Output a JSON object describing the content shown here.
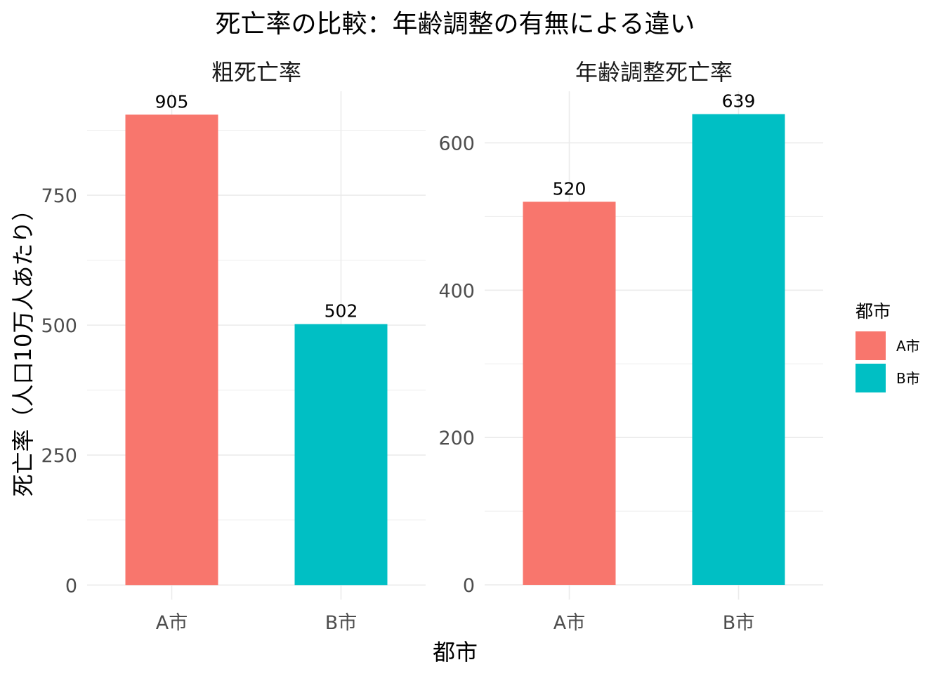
{
  "chart_data": {
    "type": "bar",
    "title": "死亡率の比較：年齢調整の有無による違い",
    "xlabel": "都市",
    "ylabel": "死亡率（人口10万人あたり）",
    "categories": [
      "A市",
      "B市"
    ],
    "colors": {
      "A市": "#F8766D",
      "B市": "#00BFC4"
    },
    "grid": true,
    "legend": {
      "title": "都市",
      "position": "right",
      "items": [
        {
          "label": "A市",
          "color": "#F8766D"
        },
        {
          "label": "B市",
          "color": "#00BFC4"
        }
      ]
    },
    "panels": [
      {
        "title": "粗死亡率",
        "values": [
          905,
          502
        ],
        "labels": [
          "905",
          "502"
        ],
        "ylim": [
          -28,
          950
        ],
        "yticks": [
          0,
          250,
          500,
          750
        ],
        "ytick_labels": [
          "0",
          "250",
          "500",
          "750"
        ],
        "minor_yticks": [
          125,
          375,
          625,
          875
        ]
      },
      {
        "title": "年齢調整死亡率",
        "values": [
          520,
          639
        ],
        "labels": [
          "520",
          "639"
        ],
        "ylim": [
          -20,
          670
        ],
        "yticks": [
          0,
          200,
          400,
          600
        ],
        "ytick_labels": [
          "0",
          "200",
          "400",
          "600"
        ],
        "minor_yticks": [
          100,
          300,
          500
        ]
      }
    ]
  }
}
